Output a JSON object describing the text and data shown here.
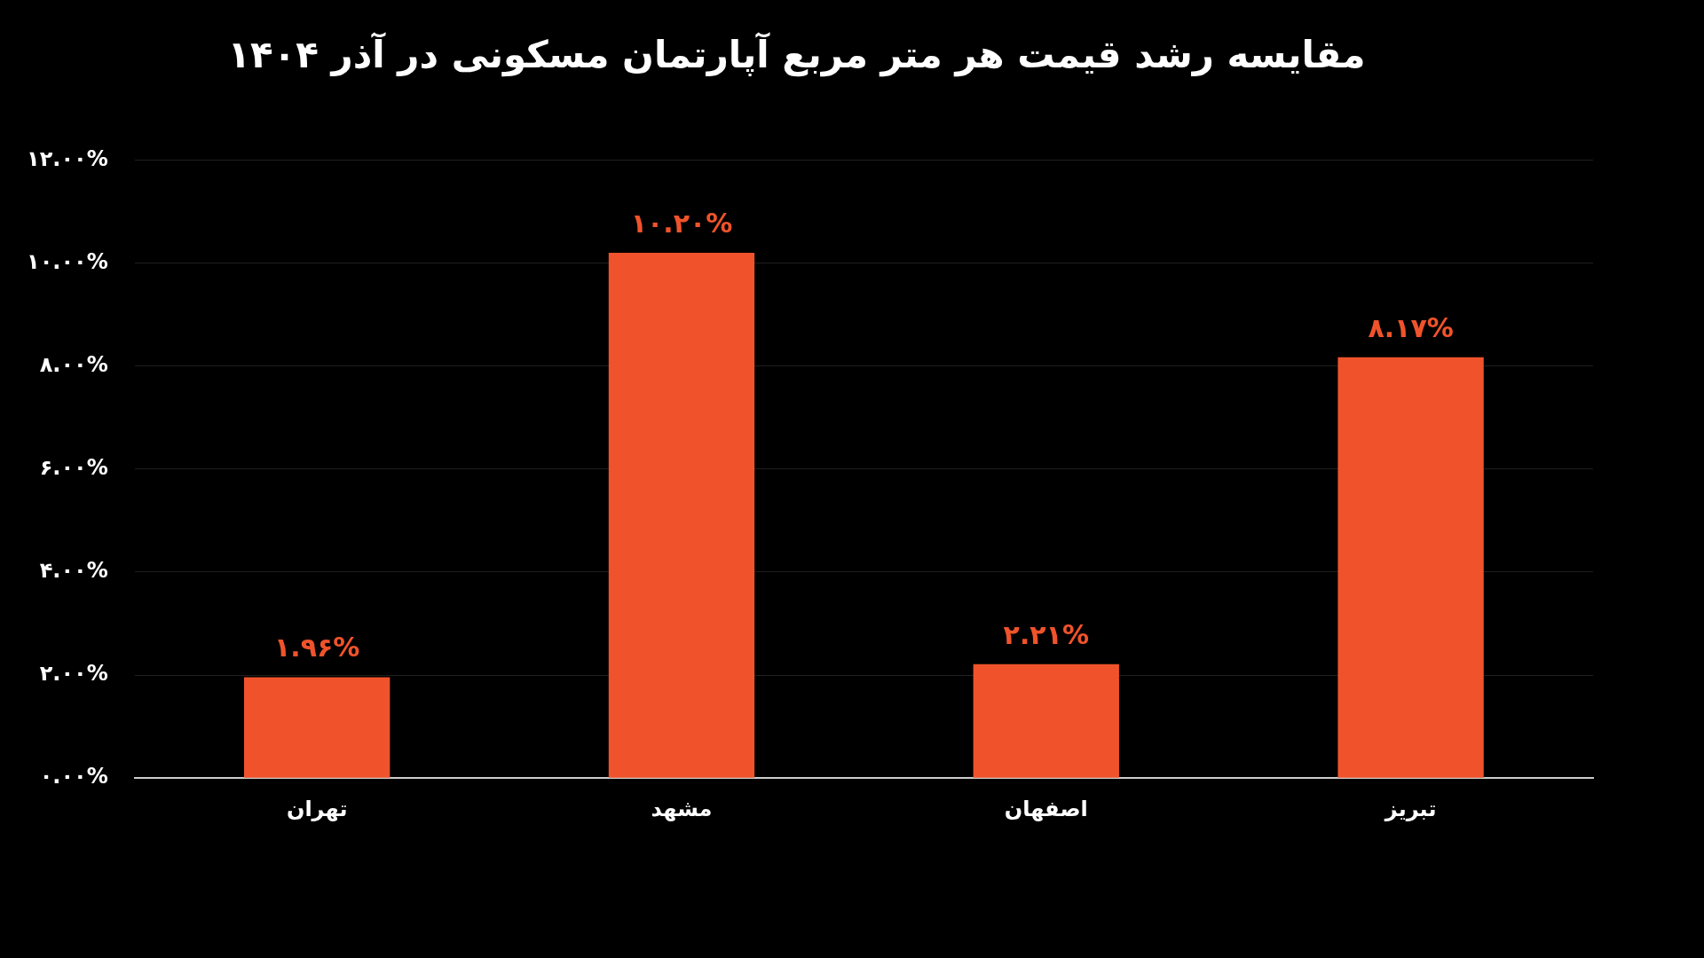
{
  "chart_data": {
    "type": "bar",
    "title": "مقایسه رشد قیمت هر متر مربع آپارتمان مسکونی در آذر ۱۴۰۴",
    "categories": [
      "تهران",
      "مشهد",
      "اصفهان",
      "تبریز"
    ],
    "values": [
      1.96,
      10.2,
      2.21,
      8.17
    ],
    "value_labels": [
      "۱.۹۶%",
      "۱۰.۲۰%",
      "۲.۲۱%",
      "۸.۱۷%"
    ],
    "color": "#f0532b",
    "ylim": [
      0,
      12
    ],
    "yticks": [
      {
        "value": 0,
        "label": "۰.۰۰%"
      },
      {
        "value": 2,
        "label": "۲.۰۰%"
      },
      {
        "value": 4,
        "label": "۴.۰۰%"
      },
      {
        "value": 6,
        "label": "۶.۰۰%"
      },
      {
        "value": 8,
        "label": "۸.۰۰%"
      },
      {
        "value": 10,
        "label": "۱۰.۰۰%"
      },
      {
        "value": 12,
        "label": "۱۲.۰۰%"
      }
    ],
    "grid": "y",
    "legend": false
  }
}
